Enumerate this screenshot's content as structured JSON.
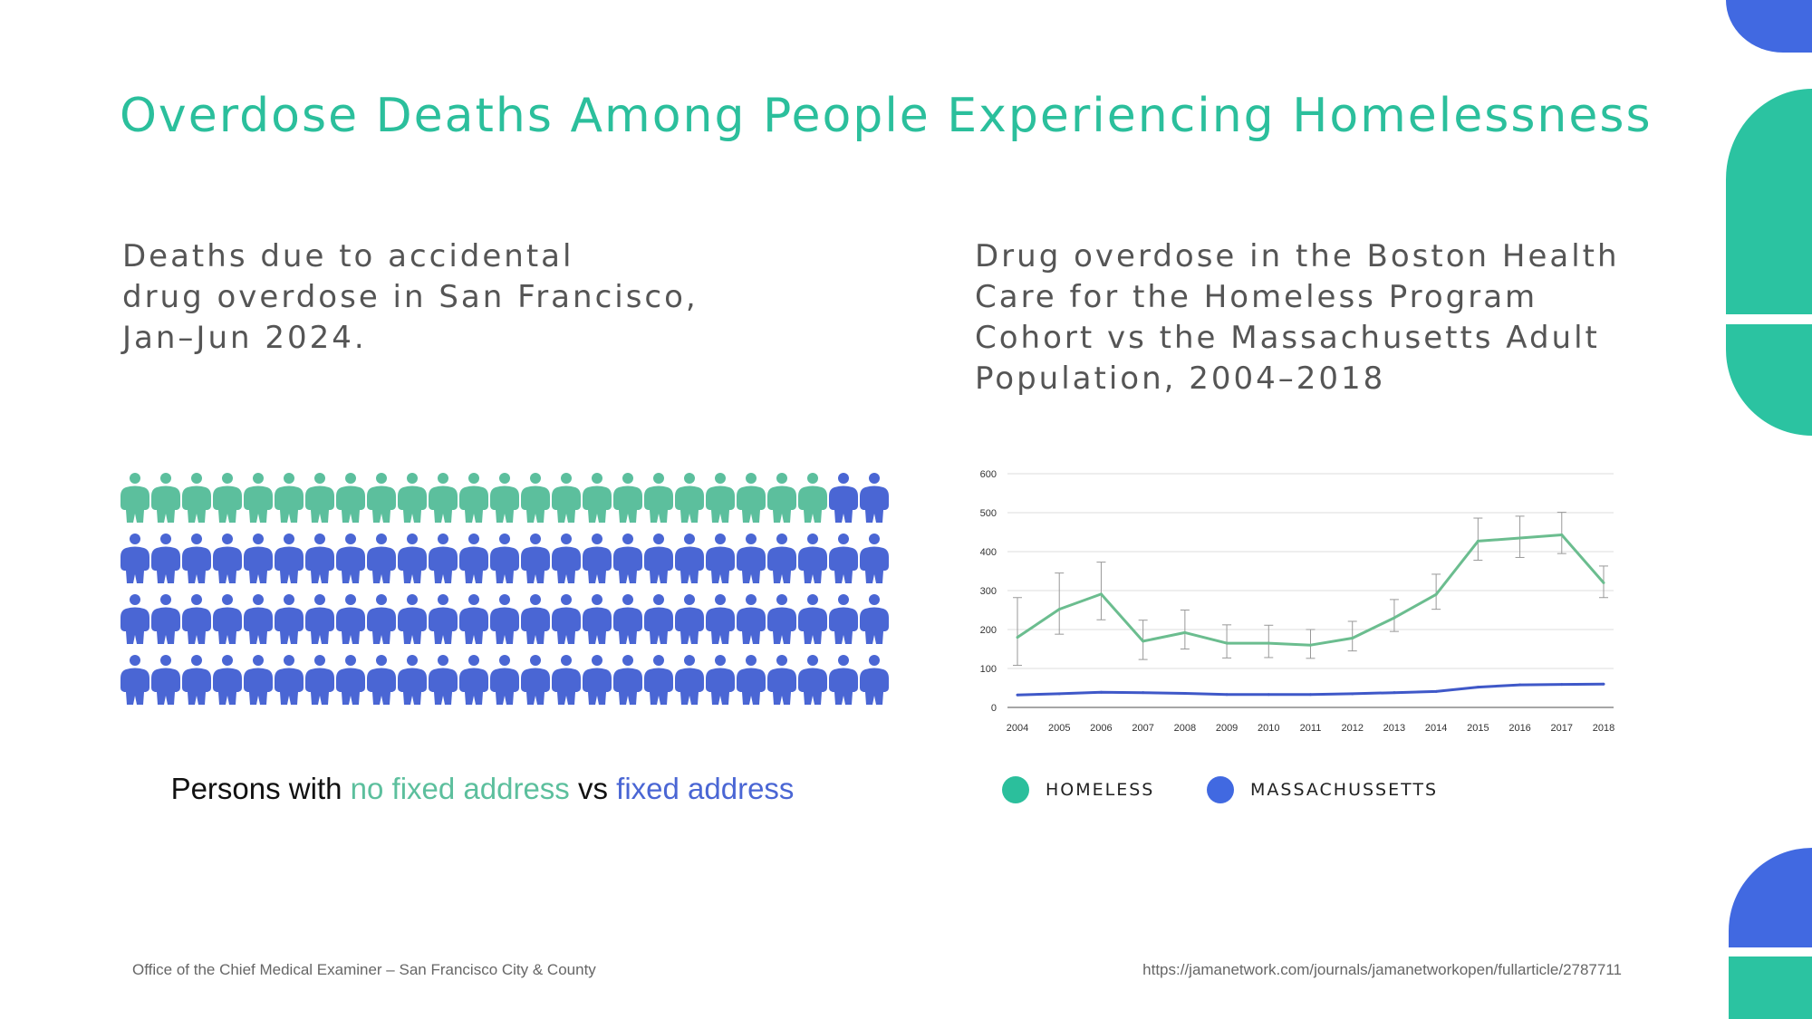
{
  "title": "Overdose Deaths Among People Experiencing Homelessness",
  "left_panel": {
    "subtitle_lines": [
      "Deaths due to accidental",
      "drug overdose in San Francisco,",
      "Jan–Jun 2024."
    ],
    "legend_sentence": {
      "prefix": "Persons with ",
      "group1": "no fixed address",
      "middle": " vs ",
      "group2": "fixed address"
    },
    "source": "Office of the Chief Medical Examiner – San Francisco City & County"
  },
  "right_panel": {
    "subtitle_lines": [
      "Drug overdose in the Boston Health",
      "Care for the Homeless Program",
      "Cohort vs the Massachusetts Adult",
      "Population, 2004–2018"
    ],
    "source": "https://jamanetwork.com/journals/jamanetworkopen/fullarticle/2787711"
  },
  "colors": {
    "title": "#2bbf9c",
    "no_fixed_address": "#5cbf9d",
    "fixed_address": "#4a66d4",
    "homeless": "#6bbd8f",
    "massachusetts": "#3f58c8",
    "legend_homeless_dot": "#2bbf9c",
    "legend_massachusetts_dot": "#4169e1",
    "deco_blue": "#4169e1",
    "deco_green": "#2bc3a1"
  },
  "chart_data": [
    {
      "type": "icon-array",
      "total": 100,
      "columns": 25,
      "categories": [
        "no fixed address",
        "fixed address"
      ],
      "values": [
        23,
        77
      ]
    },
    {
      "type": "line",
      "x": [
        2004,
        2005,
        2006,
        2007,
        2008,
        2009,
        2010,
        2011,
        2012,
        2013,
        2014,
        2015,
        2016,
        2017,
        2018
      ],
      "ylim": [
        0,
        600
      ],
      "yticks": [
        0,
        100,
        200,
        300,
        400,
        500,
        600
      ],
      "grid": true,
      "legend_position": "bottom-left",
      "series": [
        {
          "name": "HOMELESS",
          "values": [
            180,
            252,
            291,
            170,
            192,
            165,
            165,
            160,
            178,
            230,
            290,
            427,
            435,
            443,
            320
          ],
          "error_low": [
            108,
            188,
            225,
            123,
            150,
            127,
            128,
            126,
            145,
            195,
            252,
            378,
            385,
            395,
            282
          ],
          "error_high": [
            282,
            345,
            373,
            224,
            250,
            212,
            211,
            200,
            221,
            277,
            342,
            486,
            491,
            501,
            363
          ]
        },
        {
          "name": "MASSACHUSSETTS",
          "values": [
            32,
            35,
            39,
            38,
            36,
            33,
            33,
            33,
            35,
            38,
            41,
            52,
            58,
            59,
            60
          ]
        }
      ]
    }
  ]
}
